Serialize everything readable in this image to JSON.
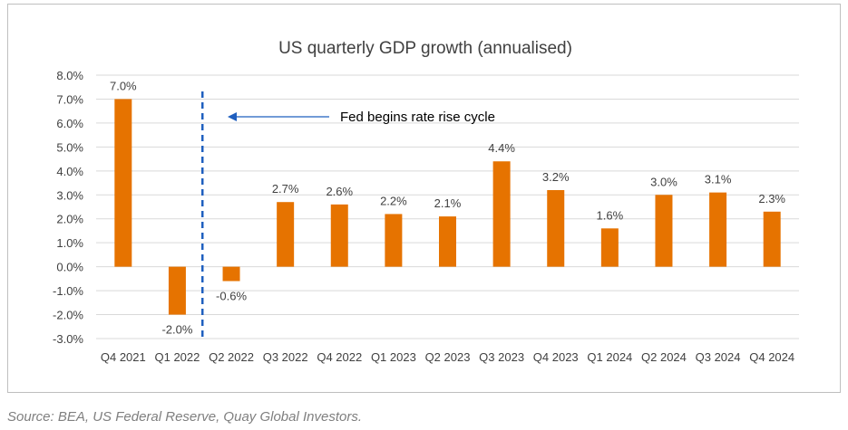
{
  "colors": {
    "bar": "#e67300",
    "grid": "#d9d9d9",
    "marker_line": "#1f5fbf",
    "arrow": "#1f5fbf",
    "text": "#404040"
  },
  "source_note": "Source: BEA, US Federal Reserve, Quay Global Investors.",
  "chart_data": {
    "type": "bar",
    "title": "US quarterly GDP growth (annualised)",
    "xlabel": "",
    "ylabel": "",
    "categories": [
      "Q4 2021",
      "Q1 2022",
      "Q2 2022",
      "Q3 2022",
      "Q4 2022",
      "Q1 2023",
      "Q2 2023",
      "Q3 2023",
      "Q4 2023",
      "Q1 2024",
      "Q2 2024",
      "Q3 2024",
      "Q4 2024"
    ],
    "values": [
      7.0,
      -2.0,
      -0.6,
      2.7,
      2.6,
      2.2,
      2.1,
      4.4,
      3.2,
      1.6,
      3.0,
      3.1,
      2.3
    ],
    "data_labels": [
      "7.0%",
      "-2.0%",
      "-0.6%",
      "2.7%",
      "2.6%",
      "2.2%",
      "2.1%",
      "4.4%",
      "3.2%",
      "1.6%",
      "3.0%",
      "3.1%",
      "2.3%"
    ],
    "ylim": [
      -3,
      8
    ],
    "yticks": [
      8,
      7,
      6,
      5,
      4,
      3,
      2,
      1,
      0,
      -1,
      -2,
      -3
    ],
    "ytick_labels": [
      "8.0%",
      "7.0%",
      "6.0%",
      "5.0%",
      "4.0%",
      "3.0%",
      "2.0%",
      "1.0%",
      "0.0%",
      "-1.0%",
      "-2.0%",
      "-3.0%"
    ],
    "grid": true,
    "annotation": {
      "text": "Fed begins rate rise cycle",
      "between": [
        "Q1 2022",
        "Q2 2022"
      ],
      "style": "dashed vertical line with left-pointing arrow"
    }
  }
}
